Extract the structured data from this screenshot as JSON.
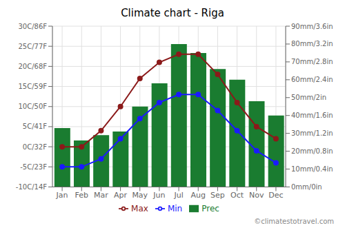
{
  "chart_data": {
    "type": "bar",
    "title": "Climate chart - Riga",
    "categories": [
      "Jan",
      "Feb",
      "Mar",
      "Apr",
      "May",
      "Jun",
      "Jul",
      "Aug",
      "Sep",
      "Oct",
      "Nov",
      "Dec"
    ],
    "series": [
      {
        "name": "Prec",
        "type": "bar",
        "axis": "y2",
        "color": "#1a7c30",
        "values": [
          33,
          26,
          29,
          31,
          45,
          58,
          80,
          75,
          66,
          60,
          48,
          40
        ]
      },
      {
        "name": "Min",
        "type": "line",
        "color": "#1a1aff",
        "marker": "circle",
        "values": [
          -5,
          -5,
          -3,
          2,
          7,
          11,
          13,
          13,
          9,
          4,
          -1,
          -4
        ]
      },
      {
        "name": "Max",
        "type": "line",
        "color": "#8b1a1a",
        "marker": "circle",
        "values": [
          0,
          0,
          4,
          10,
          17,
          21,
          23,
          23,
          18,
          11,
          5,
          2
        ]
      }
    ],
    "ylim": [
      -10,
      30
    ],
    "yticks": [
      {
        "value": -10,
        "label": "-10C/14F"
      },
      {
        "value": -5,
        "label": "-5C/23F"
      },
      {
        "value": 0,
        "label": "0C/32F"
      },
      {
        "value": 5,
        "label": "5C/41F"
      },
      {
        "value": 10,
        "label": "10C/50F"
      },
      {
        "value": 15,
        "label": "15C/59F"
      },
      {
        "value": 20,
        "label": "20C/68F"
      },
      {
        "value": 25,
        "label": "25C/77F"
      },
      {
        "value": 30,
        "label": "30C/86F"
      }
    ],
    "y2lim": [
      0,
      90
    ],
    "y2ticks": [
      {
        "value": 0,
        "label": "0mm/0in"
      },
      {
        "value": 10,
        "label": "10mm/0.4in"
      },
      {
        "value": 20,
        "label": "20mm/0.8in"
      },
      {
        "value": 30,
        "label": "30mm/1.2in"
      },
      {
        "value": 40,
        "label": "40mm/1.6in"
      },
      {
        "value": 50,
        "label": "50mm/2in"
      },
      {
        "value": 60,
        "label": "60mm/2.4in"
      },
      {
        "value": 70,
        "label": "70mm/2.8in"
      },
      {
        "value": 80,
        "label": "80mm/3.2in"
      },
      {
        "value": 90,
        "label": "90mm/3.6in"
      }
    ],
    "grid": true,
    "legend": "bottom",
    "annotations": [
      "©climatestotravel.com"
    ]
  }
}
